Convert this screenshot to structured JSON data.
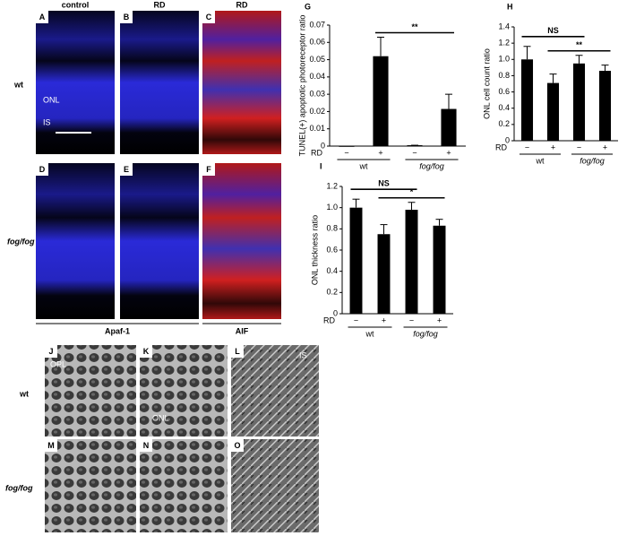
{
  "figure": {
    "column_headers": [
      "control",
      "RD",
      "RD"
    ],
    "row_labels": [
      "wt",
      "fog/fog"
    ],
    "stains": [
      "Apaf-1",
      "AIF"
    ],
    "em_row_labels": [
      "wt",
      "fog/fog"
    ],
    "micrographs": [
      {
        "letter": "A",
        "labels": [
          "ONL",
          "IS"
        ]
      },
      {
        "letter": "B"
      },
      {
        "letter": "C"
      },
      {
        "letter": "D"
      },
      {
        "letter": "E"
      },
      {
        "letter": "F"
      },
      {
        "letter": "J",
        "labels": [
          "OPL"
        ]
      },
      {
        "letter": "K",
        "labels": [
          "ONL"
        ]
      },
      {
        "letter": "L",
        "labels": [
          "IS"
        ]
      },
      {
        "letter": "M"
      },
      {
        "letter": "N"
      },
      {
        "letter": "O"
      }
    ]
  },
  "chart_data": [
    {
      "type": "bar",
      "panel": "G",
      "y_label": "TUNEL(+) apoptotic photoreceptor ratio",
      "x_label": "RD",
      "categories": [
        "−",
        "+",
        "−",
        "+"
      ],
      "groups": [
        "wt",
        "fog/fog"
      ],
      "values": [
        0,
        0.052,
        0.0005,
        0.0215
      ],
      "errors": [
        0,
        0.011,
        0,
        0.0085
      ],
      "color": "#000000",
      "ylim": [
        0,
        0.07
      ],
      "yticks": [
        0,
        0.01,
        0.02,
        0.03,
        0.04,
        0.05,
        0.06,
        0.07
      ],
      "annotations": [
        {
          "text": "**"
        }
      ]
    },
    {
      "type": "bar",
      "panel": "H",
      "y_label": "ONL cell count ratio",
      "x_label": "RD",
      "categories": [
        "−",
        "+",
        "−",
        "+"
      ],
      "groups": [
        "wt",
        "fog/fog"
      ],
      "values": [
        1.0,
        0.71,
        0.95,
        0.86
      ],
      "errors": [
        0.16,
        0.11,
        0.1,
        0.07
      ],
      "color": "#000000",
      "ylim": [
        0,
        1.4
      ],
      "yticks": [
        0,
        0.2,
        0.4,
        0.6,
        0.8,
        {
          "value": 1,
          "label": "1.0"
        },
        1.2,
        1.4
      ],
      "annotations": [
        {
          "text": "NS"
        },
        {
          "text": "**"
        }
      ]
    },
    {
      "type": "bar",
      "panel": "I",
      "y_label": "ONL thickness ratio",
      "x_label": "RD",
      "categories": [
        "−",
        "+",
        "−",
        "+"
      ],
      "groups": [
        "wt",
        "fog/fog"
      ],
      "values": [
        1.0,
        0.75,
        0.98,
        0.83
      ],
      "errors": [
        0.08,
        0.09,
        0.07,
        0.06
      ],
      "color": "#000000",
      "ylim": [
        0,
        1.2
      ],
      "yticks": [
        0,
        0.2,
        0.4,
        0.6,
        0.8,
        {
          "value": 1,
          "label": "1.0"
        },
        1.2
      ],
      "annotations": [
        {
          "text": "NS"
        },
        {
          "text": "*"
        }
      ]
    }
  ]
}
